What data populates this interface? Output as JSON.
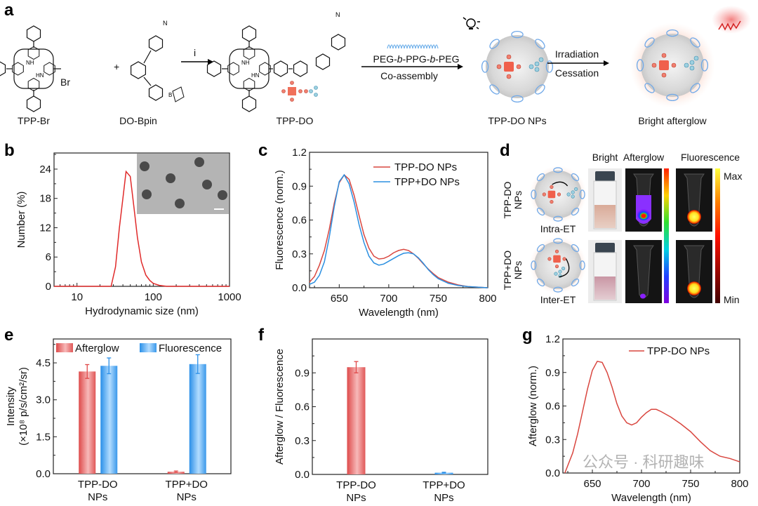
{
  "panel_labels": {
    "a": "a",
    "b": "b",
    "c": "c",
    "d": "d",
    "e": "e",
    "f": "f",
    "g": "g"
  },
  "scheme": {
    "compound1": "TPP-Br",
    "compound2": "DO-Bpin",
    "plus": "+",
    "br_label": "Br",
    "step_label": "i",
    "product": "TPP-DO",
    "polymer": "PEG-b-PPG-b-PEG",
    "polymer_parts": [
      "PEG-",
      "b",
      "-PPG-",
      "b",
      "-PEG"
    ],
    "assembly": "Co-assembly",
    "nanoparticle": "TPP-DO NPs",
    "irradiation": "Irradiation",
    "cessation": "Cessation",
    "result": "Bright afterglow",
    "result_color": "#e0201e",
    "icons": [
      "light-bulb-icon",
      "emission-wave-icon"
    ]
  },
  "panel_d": {
    "columns": [
      "Bright",
      "Afterglow",
      "Fluorescence"
    ],
    "rows": [
      {
        "label_line1": "TPP-DO",
        "label_line2": "NPs",
        "mechanism": "Intra-ET"
      },
      {
        "label_line1": "TPP+DO",
        "label_line2": "NPs",
        "mechanism": "Inter-ET"
      }
    ],
    "scale_max": "Max",
    "scale_min": "Min"
  },
  "watermark": "公众号 · 科研趣味",
  "chart_data": [
    {
      "id": "b",
      "type": "line",
      "xlabel": "Hydrodynamic size (nm)",
      "ylabel": "Number (%)",
      "xscale": "log",
      "xlim": [
        5,
        1000
      ],
      "ylim": [
        0,
        27.3
      ],
      "xticks": [
        10,
        100,
        1000
      ],
      "yticks": [
        0,
        6,
        12,
        18,
        24
      ],
      "inset": "TEM image with scale bar",
      "series": [
        {
          "color": "#e02a2a",
          "x": [
            5,
            28,
            32,
            36,
            40,
            44,
            50,
            56,
            62,
            70,
            80,
            90,
            100,
            120,
            150,
            1000
          ],
          "y": [
            0,
            0,
            4,
            12,
            18,
            23.5,
            22.5,
            16,
            10,
            5,
            2.3,
            1.2,
            0.6,
            0.2,
            0,
            0
          ]
        }
      ]
    },
    {
      "id": "c",
      "type": "line",
      "xlabel": "Wavelength (nm)",
      "ylabel": "Fluorescence (norm.)",
      "xlim": [
        620,
        800
      ],
      "ylim": [
        0,
        1.2
      ],
      "xticks": [
        650,
        700,
        750,
        800
      ],
      "yticks": [
        "0.0",
        "0.3",
        "0.6",
        "0.9",
        "1.2"
      ],
      "legend": "top-right",
      "x": [
        620,
        625,
        630,
        635,
        640,
        645,
        650,
        655,
        660,
        665,
        670,
        675,
        680,
        685,
        690,
        695,
        700,
        705,
        710,
        715,
        720,
        725,
        730,
        735,
        740,
        745,
        750,
        760,
        770,
        780,
        800
      ],
      "series": [
        {
          "name": "TPP-DO NPs",
          "color": "#d9463f",
          "y": [
            0.05,
            0.1,
            0.2,
            0.33,
            0.52,
            0.75,
            0.93,
            1.0,
            0.96,
            0.82,
            0.64,
            0.47,
            0.35,
            0.28,
            0.255,
            0.26,
            0.28,
            0.31,
            0.33,
            0.34,
            0.33,
            0.3,
            0.26,
            0.21,
            0.165,
            0.125,
            0.09,
            0.05,
            0.025,
            0.01,
            0
          ]
        },
        {
          "name": "TPP+DO NPs",
          "color": "#2b8fe0",
          "y": [
            0.03,
            0.05,
            0.11,
            0.23,
            0.45,
            0.72,
            0.94,
            1.0,
            0.92,
            0.76,
            0.56,
            0.4,
            0.28,
            0.22,
            0.2,
            0.21,
            0.235,
            0.26,
            0.285,
            0.305,
            0.31,
            0.3,
            0.265,
            0.215,
            0.16,
            0.115,
            0.08,
            0.04,
            0.02,
            0.01,
            0
          ]
        }
      ]
    },
    {
      "id": "e",
      "type": "bar",
      "ylabel_line1": "Intensity",
      "ylabel_line2": "(×10⁸ p/s/cm²/sr)",
      "ylim": [
        0,
        5.47
      ],
      "yticks": [
        "0.0",
        "1.5",
        "3.0",
        "4.5"
      ],
      "categories": [
        [
          "TPP-DO",
          "NPs"
        ],
        [
          "TPP+DO",
          "NPs"
        ]
      ],
      "legend": "top",
      "series": [
        {
          "name": "Afterglow",
          "color": "#e04848",
          "values": [
            4.15,
            0.08
          ],
          "errors": [
            0.28,
            0.03
          ]
        },
        {
          "name": "Fluorescence",
          "color": "#2a8fe8",
          "values": [
            4.38,
            4.45
          ],
          "errors": [
            0.32,
            0.38
          ]
        }
      ]
    },
    {
      "id": "f",
      "type": "bar",
      "ylabel": "Afterglow / Fluorescence",
      "ylim": [
        0,
        1.2
      ],
      "yticks": [
        "0.0",
        "0.3",
        "0.6",
        "0.9"
      ],
      "categories": [
        [
          "TPP-DO",
          "NPs"
        ],
        [
          "TPP+DO",
          "NPs"
        ]
      ],
      "values": [
        0.95,
        0.015
      ],
      "errors": [
        0.05,
        0.004
      ],
      "colors": [
        "#e04848",
        "#2a8fe8"
      ]
    },
    {
      "id": "g",
      "type": "line",
      "xlabel": "Wavelength (nm)",
      "ylabel": "Afterglow (norm.)",
      "xlim": [
        620,
        800
      ],
      "ylim": [
        0,
        1.2
      ],
      "xticks": [
        650,
        700,
        750,
        800
      ],
      "yticks": [
        "0.0",
        "0.3",
        "0.6",
        "0.9",
        "1.2"
      ],
      "legend": "top-right",
      "series": [
        {
          "name": "TPP-DO NPs",
          "color": "#d9463f",
          "x": [
            622,
            630,
            635,
            640,
            645,
            650,
            655,
            660,
            665,
            670,
            675,
            680,
            685,
            690,
            695,
            700,
            705,
            710,
            715,
            720,
            730,
            740,
            750,
            760,
            770,
            780,
            790,
            800
          ],
          "y": [
            0,
            0.18,
            0.35,
            0.55,
            0.75,
            0.92,
            1.0,
            0.99,
            0.9,
            0.77,
            0.62,
            0.51,
            0.45,
            0.43,
            0.45,
            0.5,
            0.54,
            0.57,
            0.57,
            0.55,
            0.5,
            0.44,
            0.37,
            0.28,
            0.2,
            0.15,
            0.13,
            0.1
          ]
        }
      ]
    }
  ]
}
